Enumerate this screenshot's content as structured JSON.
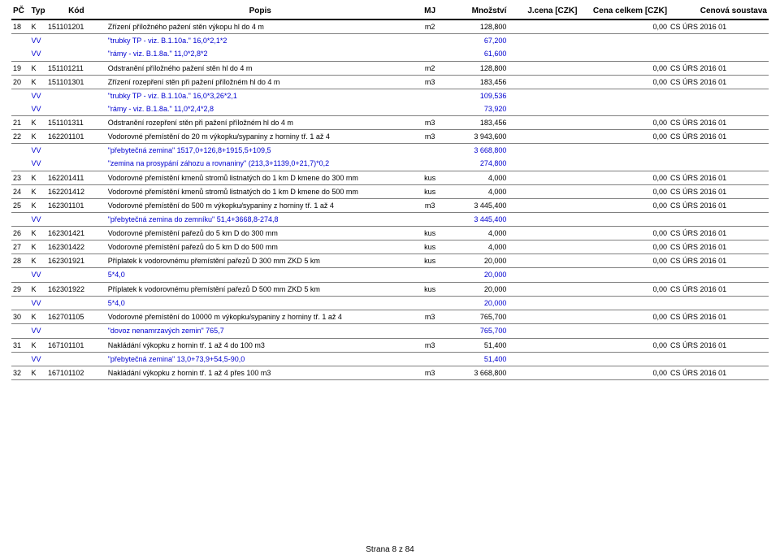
{
  "header": {
    "pc": "PČ",
    "typ": "Typ",
    "kod": "Kód",
    "popis": "Popis",
    "mj": "MJ",
    "mnozstvi": "Množství",
    "jcena": "J.cena [CZK]",
    "celkem": "Cena celkem [CZK]",
    "soustava": "Cenová soustava"
  },
  "rows": [
    {
      "t": "main",
      "pc": "18",
      "typ": "K",
      "kod": "151101201",
      "popis": "Zřízení příložného pažení stěn výkopu hl do 4 m",
      "mj": "m2",
      "mn": "128,800",
      "cel": "0,00",
      "sou": "CS ÚRS 2016 01"
    },
    {
      "t": "vv",
      "popis": "\"trubky TP - viz. B.1.10a.\" 16,0*2,1*2",
      "mn": "67,200"
    },
    {
      "t": "vv",
      "popis": "\"rámy - viz. B.1.8a.\" 11,0*2,8*2",
      "mn": "61,600"
    },
    {
      "t": "sp"
    },
    {
      "t": "main",
      "pc": "19",
      "typ": "K",
      "kod": "151101211",
      "popis": "Odstranění příložného pažení stěn hl do 4 m",
      "mj": "m2",
      "mn": "128,800",
      "cel": "0,00",
      "sou": "CS ÚRS 2016 01"
    },
    {
      "t": "main",
      "pc": "20",
      "typ": "K",
      "kod": "151101301",
      "popis": "Zřízení rozepření stěn při pažení příložném hl do 4 m",
      "mj": "m3",
      "mn": "183,456",
      "cel": "0,00",
      "sou": "CS ÚRS 2016 01"
    },
    {
      "t": "vv",
      "popis": "\"trubky TP - viz. B.1.10a.\" 16,0*3,26*2,1",
      "mn": "109,536"
    },
    {
      "t": "vv",
      "popis": "\"rámy - viz. B.1.8a.\" 11,0*2,4*2,8",
      "mn": "73,920"
    },
    {
      "t": "sp"
    },
    {
      "t": "main",
      "pc": "21",
      "typ": "K",
      "kod": "151101311",
      "popis": "Odstranění rozepření stěn při pažení příložném hl do 4 m",
      "mj": "m3",
      "mn": "183,456",
      "cel": "0,00",
      "sou": "CS ÚRS 2016 01"
    },
    {
      "t": "main",
      "pc": "22",
      "typ": "K",
      "kod": "162201101",
      "popis": "Vodorovné přemístění do 20 m výkopku/sypaniny z horniny tř. 1 až 4",
      "mj": "m3",
      "mn": "3 943,600",
      "cel": "0,00",
      "sou": "CS ÚRS 2016 01"
    },
    {
      "t": "vv",
      "popis": "\"přebytečná zemina\" 1517,0+126,8+1915,5+109,5",
      "mn": "3 668,800"
    },
    {
      "t": "vv",
      "popis": "\"zemina na prosypání záhozu a rovnaniny\" (213,3+1139,0+21,7)*0,2",
      "mn": "274,800"
    },
    {
      "t": "sp"
    },
    {
      "t": "main",
      "pc": "23",
      "typ": "K",
      "kod": "162201411",
      "popis": "Vodorovné přemístění kmenů stromů listnatých do 1 km D kmene do 300 mm",
      "mj": "kus",
      "mn": "4,000",
      "cel": "0,00",
      "sou": "CS ÚRS 2016 01"
    },
    {
      "t": "main",
      "pc": "24",
      "typ": "K",
      "kod": "162201412",
      "popis": "Vodorovné přemístění kmenů stromů listnatých do 1 km D kmene do 500 mm",
      "mj": "kus",
      "mn": "4,000",
      "cel": "0,00",
      "sou": "CS ÚRS 2016 01"
    },
    {
      "t": "main",
      "pc": "25",
      "typ": "K",
      "kod": "162301101",
      "popis": "Vodorovné přemístění do 500 m výkopku/sypaniny z horniny tř. 1 až 4",
      "mj": "m3",
      "mn": "3 445,400",
      "cel": "0,00",
      "sou": "CS ÚRS 2016 01"
    },
    {
      "t": "vv",
      "popis": "\"přebytečná zemina do zemníku\" 51,4+3668,8-274,8",
      "mn": "3 445,400"
    },
    {
      "t": "sp"
    },
    {
      "t": "main",
      "pc": "26",
      "typ": "K",
      "kod": "162301421",
      "popis": "Vodorovné přemístění pařezů do 5 km D do 300 mm",
      "mj": "kus",
      "mn": "4,000",
      "cel": "0,00",
      "sou": "CS ÚRS 2016 01"
    },
    {
      "t": "main",
      "pc": "27",
      "typ": "K",
      "kod": "162301422",
      "popis": "Vodorovné přemístění pařezů do 5 km D do 500 mm",
      "mj": "kus",
      "mn": "4,000",
      "cel": "0,00",
      "sou": "CS ÚRS 2016 01"
    },
    {
      "t": "main",
      "pc": "28",
      "typ": "K",
      "kod": "162301921",
      "popis": "Příplatek k vodorovnému přemístění pařezů D 300 mm ZKD 5 km",
      "mj": "kus",
      "mn": "20,000",
      "cel": "0,00",
      "sou": "CS ÚRS 2016 01"
    },
    {
      "t": "vv",
      "popis": "5*4,0",
      "mn": "20,000"
    },
    {
      "t": "sp"
    },
    {
      "t": "main",
      "pc": "29",
      "typ": "K",
      "kod": "162301922",
      "popis": "Příplatek k vodorovnému přemístění pařezů D 500 mm ZKD 5 km",
      "mj": "kus",
      "mn": "20,000",
      "cel": "0,00",
      "sou": "CS ÚRS 2016 01"
    },
    {
      "t": "vv",
      "popis": "5*4,0",
      "mn": "20,000"
    },
    {
      "t": "sp"
    },
    {
      "t": "main",
      "pc": "30",
      "typ": "K",
      "kod": "162701105",
      "popis": "Vodorovné přemístění do 10000 m výkopku/sypaniny z horniny tř. 1 až 4",
      "mj": "m3",
      "mn": "765,700",
      "cel": "0,00",
      "sou": "CS ÚRS 2016 01"
    },
    {
      "t": "vv",
      "popis": "\"dovoz nenamrzavých zemin\" 765,7",
      "mn": "765,700"
    },
    {
      "t": "sp"
    },
    {
      "t": "main",
      "pc": "31",
      "typ": "K",
      "kod": "167101101",
      "popis": "Nakládání výkopku z hornin tř. 1 až 4 do 100 m3",
      "mj": "m3",
      "mn": "51,400",
      "cel": "0,00",
      "sou": "CS ÚRS 2016 01"
    },
    {
      "t": "vv",
      "popis": "\"přebytečná zemina\" 13,0+73,9+54,5-90,0",
      "mn": "51,400"
    },
    {
      "t": "sp"
    },
    {
      "t": "main",
      "pc": "32",
      "typ": "K",
      "kod": "167101102",
      "popis": "Nakládání výkopku z hornin tř. 1 až 4 přes 100 m3",
      "mj": "m3",
      "mn": "3 668,800",
      "cel": "0,00",
      "sou": "CS ÚRS 2016 01"
    }
  ],
  "vvLabel": "VV",
  "footer": "Strana 8 z 84"
}
